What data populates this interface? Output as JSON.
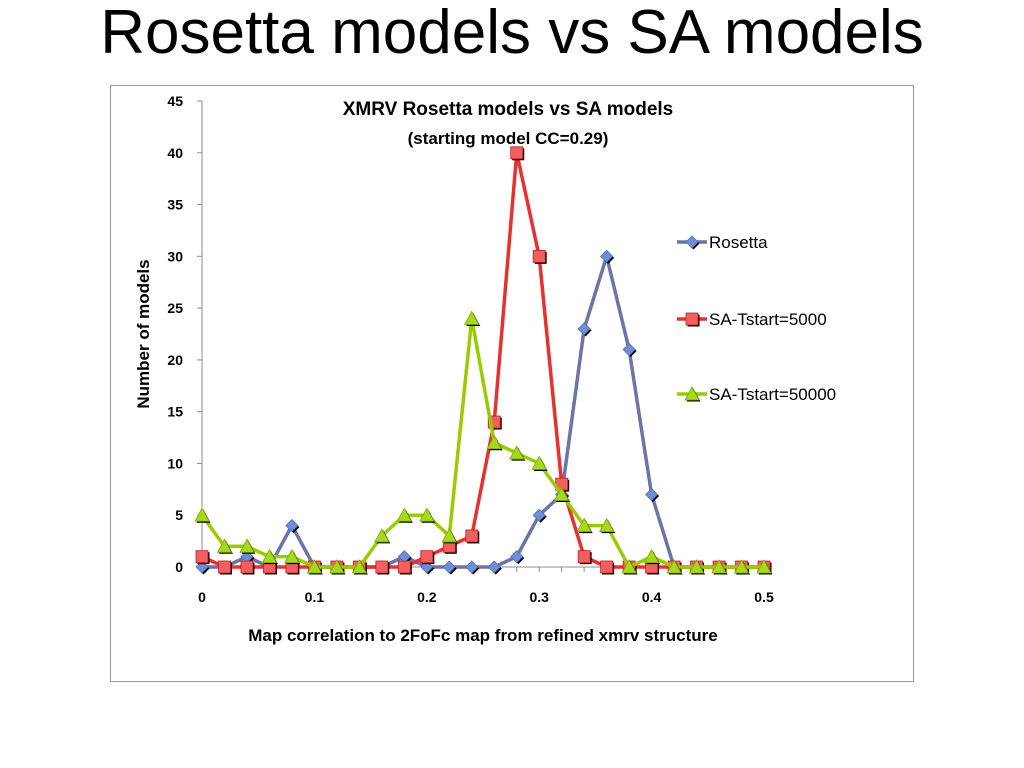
{
  "slide": {
    "title": "Rosetta models vs SA models"
  },
  "chart_data": {
    "type": "line",
    "title": "XMRV Rosetta models vs SA models",
    "subtitle": "(starting model CC=0.29)",
    "xlabel": "Map correlation to 2FoFc map from refined xmrv structure",
    "ylabel": "Number of models",
    "x": [
      0,
      0.02,
      0.04,
      0.06,
      0.08,
      0.1,
      0.12,
      0.14,
      0.16,
      0.18,
      0.2,
      0.22,
      0.24,
      0.26,
      0.28,
      0.3,
      0.32,
      0.34,
      0.36,
      0.38,
      0.4,
      0.42,
      0.44,
      0.46,
      0.48,
      0.5
    ],
    "xlim": [
      0,
      0.5
    ],
    "ylim": [
      0,
      45
    ],
    "x_ticks": [
      "0",
      "0.1",
      "0.2",
      "0.3",
      "0.4",
      "0.5"
    ],
    "x_tick_values": [
      0,
      0.1,
      0.2,
      0.3,
      0.4,
      0.5
    ],
    "y_ticks": [
      "0",
      "5",
      "10",
      "15",
      "20",
      "25",
      "30",
      "35",
      "40",
      "45"
    ],
    "y_tick_values": [
      0,
      5,
      10,
      15,
      20,
      25,
      30,
      35,
      40,
      45
    ],
    "grid": false,
    "legend_position": "right",
    "series": [
      {
        "name": "Rosetta",
        "color": "#6b74a8",
        "marker": "diamond",
        "marker_color": "#6e8ed8",
        "values": [
          0,
          0,
          1,
          0,
          4,
          0,
          0,
          0,
          0,
          1,
          0,
          0,
          0,
          0,
          1,
          5,
          7,
          23,
          30,
          21,
          7,
          0,
          0,
          0,
          0,
          0
        ]
      },
      {
        "name": "SA-Tstart=5000",
        "color": "#e83030",
        "marker": "square",
        "marker_color": "#f06060",
        "values": [
          1,
          0,
          0,
          0,
          0,
          0,
          0,
          0,
          0,
          0,
          1,
          2,
          3,
          14,
          40,
          30,
          8,
          1,
          0,
          0,
          0,
          0,
          0,
          0,
          0,
          0
        ]
      },
      {
        "name": "SA-Tstart=50000",
        "color": "#99cc00",
        "marker": "triangle",
        "marker_color": "#a6d81e",
        "values": [
          5,
          2,
          2,
          1,
          1,
          0,
          0,
          0,
          3,
          5,
          5,
          3,
          24,
          12,
          11,
          10,
          7,
          4,
          4,
          0,
          1,
          0,
          0,
          0,
          0,
          0
        ]
      }
    ]
  }
}
